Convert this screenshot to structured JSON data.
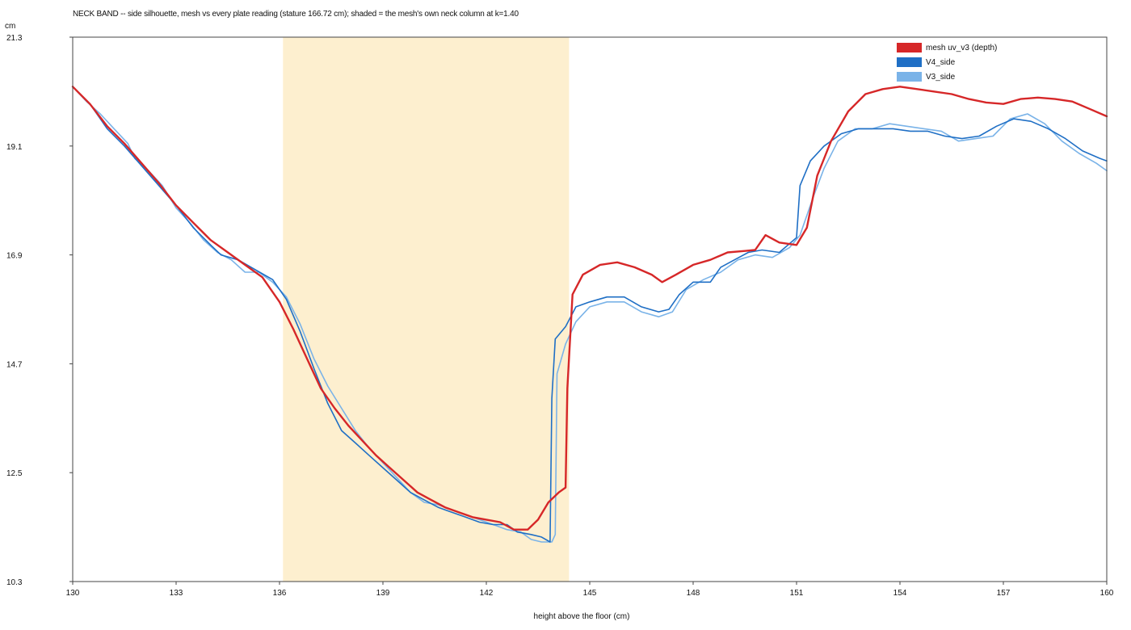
{
  "chart_data": {
    "type": "line",
    "title": "NECK BAND -- side silhouette, mesh vs every plate reading (stature 166.72 cm); shaded = the mesh's own neck column at k=1.40",
    "xlabel": "height above the floor (cm)",
    "ylabel": "cm",
    "xlim": [
      130,
      160
    ],
    "ylim": [
      10.3,
      21.3
    ],
    "x_ticks": [
      "130",
      "133",
      "136",
      "139",
      "142",
      "145",
      "148",
      "151",
      "154",
      "157",
      "160"
    ],
    "y_ticks": [
      "10.3",
      "12.5",
      "14.7",
      "16.9",
      "19.1",
      "21.3"
    ],
    "shaded_band": {
      "x_start": 136.1,
      "x_end": 144.4,
      "color": "#fdefcf"
    },
    "legend_position": "top-right",
    "grid": false,
    "series": [
      {
        "name": "mesh uv_v3 (depth)",
        "color": "#d62728",
        "points": [
          [
            130,
            20.3
          ],
          [
            130.5,
            19.95
          ],
          [
            131,
            19.5
          ],
          [
            131.5,
            19.15
          ],
          [
            132,
            18.75
          ],
          [
            132.5,
            18.35
          ],
          [
            133,
            17.9
          ],
          [
            133.5,
            17.55
          ],
          [
            134,
            17.2
          ],
          [
            134.5,
            16.95
          ],
          [
            135,
            16.7
          ],
          [
            135.5,
            16.45
          ],
          [
            136,
            15.95
          ],
          [
            136.4,
            15.4
          ],
          [
            136.8,
            14.8
          ],
          [
            137.2,
            14.2
          ],
          [
            137.6,
            13.8
          ],
          [
            138,
            13.45
          ],
          [
            138.4,
            13.15
          ],
          [
            138.8,
            12.85
          ],
          [
            139.2,
            12.6
          ],
          [
            139.6,
            12.35
          ],
          [
            140,
            12.1
          ],
          [
            140.4,
            11.95
          ],
          [
            140.8,
            11.8
          ],
          [
            141.2,
            11.7
          ],
          [
            141.6,
            11.6
          ],
          [
            142,
            11.55
          ],
          [
            142.4,
            11.5
          ],
          [
            142.8,
            11.35
          ],
          [
            143.2,
            11.35
          ],
          [
            143.5,
            11.55
          ],
          [
            143.8,
            11.9
          ],
          [
            144.1,
            12.1
          ],
          [
            144.3,
            12.2
          ],
          [
            144.35,
            14.2
          ],
          [
            144.5,
            16.1
          ],
          [
            144.8,
            16.5
          ],
          [
            145.3,
            16.7
          ],
          [
            145.8,
            16.75
          ],
          [
            146.3,
            16.65
          ],
          [
            146.8,
            16.5
          ],
          [
            147.1,
            16.35
          ],
          [
            147.5,
            16.5
          ],
          [
            148,
            16.7
          ],
          [
            148.5,
            16.8
          ],
          [
            149,
            16.95
          ],
          [
            149.5,
            16.98
          ],
          [
            149.8,
            17.0
          ],
          [
            150.1,
            17.3
          ],
          [
            150.5,
            17.15
          ],
          [
            151,
            17.1
          ],
          [
            151.3,
            17.45
          ],
          [
            151.6,
            18.5
          ],
          [
            152,
            19.2
          ],
          [
            152.5,
            19.8
          ],
          [
            153,
            20.15
          ],
          [
            153.5,
            20.25
          ],
          [
            154,
            20.3
          ],
          [
            154.5,
            20.25
          ],
          [
            155,
            20.2
          ],
          [
            155.5,
            20.15
          ],
          [
            156,
            20.05
          ],
          [
            156.5,
            19.98
          ],
          [
            157,
            19.95
          ],
          [
            157.5,
            20.05
          ],
          [
            158,
            20.08
          ],
          [
            158.5,
            20.05
          ],
          [
            159,
            20.0
          ],
          [
            159.5,
            19.85
          ],
          [
            160,
            19.7
          ]
        ]
      },
      {
        "name": "V4_side",
        "color": "#1f6fc5",
        "points": [
          [
            130,
            20.3
          ],
          [
            130.5,
            19.95
          ],
          [
            131,
            19.45
          ],
          [
            131.5,
            19.1
          ],
          [
            132,
            18.7
          ],
          [
            132.5,
            18.3
          ],
          [
            133,
            17.9
          ],
          [
            133.5,
            17.45
          ],
          [
            134,
            17.1
          ],
          [
            134.3,
            16.9
          ],
          [
            134.8,
            16.8
          ],
          [
            135.3,
            16.6
          ],
          [
            135.8,
            16.4
          ],
          [
            136.2,
            16.0
          ],
          [
            136.6,
            15.35
          ],
          [
            137,
            14.6
          ],
          [
            137.4,
            13.9
          ],
          [
            137.8,
            13.35
          ],
          [
            138.2,
            13.1
          ],
          [
            138.6,
            12.85
          ],
          [
            139,
            12.6
          ],
          [
            139.4,
            12.35
          ],
          [
            139.8,
            12.1
          ],
          [
            140.2,
            11.95
          ],
          [
            140.6,
            11.8
          ],
          [
            141,
            11.7
          ],
          [
            141.4,
            11.6
          ],
          [
            141.8,
            11.5
          ],
          [
            142.2,
            11.45
          ],
          [
            142.6,
            11.45
          ],
          [
            142.9,
            11.3
          ],
          [
            143.3,
            11.25
          ],
          [
            143.6,
            11.2
          ],
          [
            143.85,
            11.1
          ],
          [
            143.9,
            14.0
          ],
          [
            144.0,
            15.2
          ],
          [
            144.3,
            15.45
          ],
          [
            144.6,
            15.85
          ],
          [
            145,
            15.95
          ],
          [
            145.5,
            16.05
          ],
          [
            146,
            16.05
          ],
          [
            146.5,
            15.85
          ],
          [
            147,
            15.75
          ],
          [
            147.3,
            15.8
          ],
          [
            147.6,
            16.1
          ],
          [
            148,
            16.35
          ],
          [
            148.5,
            16.35
          ],
          [
            148.8,
            16.65
          ],
          [
            149.2,
            16.8
          ],
          [
            149.6,
            16.95
          ],
          [
            150,
            17.0
          ],
          [
            150.5,
            16.95
          ],
          [
            151,
            17.25
          ],
          [
            151.1,
            18.3
          ],
          [
            151.4,
            18.8
          ],
          [
            151.8,
            19.1
          ],
          [
            152.3,
            19.35
          ],
          [
            152.8,
            19.45
          ],
          [
            153.3,
            19.45
          ],
          [
            153.8,
            19.45
          ],
          [
            154.3,
            19.4
          ],
          [
            154.8,
            19.4
          ],
          [
            155.3,
            19.3
          ],
          [
            155.8,
            19.25
          ],
          [
            156.3,
            19.3
          ],
          [
            156.8,
            19.5
          ],
          [
            157.3,
            19.65
          ],
          [
            157.8,
            19.6
          ],
          [
            158.3,
            19.45
          ],
          [
            158.8,
            19.25
          ],
          [
            159.3,
            19.0
          ],
          [
            159.8,
            18.85
          ],
          [
            160,
            18.8
          ]
        ]
      },
      {
        "name": "V3_side",
        "color": "#7ab3e8",
        "points": [
          [
            130,
            20.3
          ],
          [
            130.4,
            20.0
          ],
          [
            130.8,
            19.75
          ],
          [
            131.2,
            19.45
          ],
          [
            131.6,
            19.15
          ],
          [
            131.8,
            18.85
          ],
          [
            132.2,
            18.6
          ],
          [
            132.6,
            18.3
          ],
          [
            133,
            17.85
          ],
          [
            133.4,
            17.55
          ],
          [
            133.8,
            17.2
          ],
          [
            134.2,
            16.95
          ],
          [
            134.6,
            16.8
          ],
          [
            135,
            16.55
          ],
          [
            135.4,
            16.55
          ],
          [
            135.8,
            16.35
          ],
          [
            136.2,
            16.05
          ],
          [
            136.6,
            15.5
          ],
          [
            137,
            14.8
          ],
          [
            137.4,
            14.25
          ],
          [
            137.8,
            13.8
          ],
          [
            138.2,
            13.35
          ],
          [
            138.6,
            13.0
          ],
          [
            139,
            12.7
          ],
          [
            139.4,
            12.4
          ],
          [
            139.8,
            12.1
          ],
          [
            140.2,
            11.9
          ],
          [
            140.6,
            11.85
          ],
          [
            141,
            11.75
          ],
          [
            141.4,
            11.65
          ],
          [
            141.8,
            11.55
          ],
          [
            142.2,
            11.45
          ],
          [
            142.6,
            11.35
          ],
          [
            143,
            11.3
          ],
          [
            143.3,
            11.15
          ],
          [
            143.6,
            11.1
          ],
          [
            143.9,
            11.1
          ],
          [
            144.0,
            11.25
          ],
          [
            144.05,
            14.5
          ],
          [
            144.3,
            15.1
          ],
          [
            144.6,
            15.55
          ],
          [
            145,
            15.85
          ],
          [
            145.5,
            15.95
          ],
          [
            146,
            15.95
          ],
          [
            146.5,
            15.75
          ],
          [
            147,
            15.65
          ],
          [
            147.4,
            15.75
          ],
          [
            147.8,
            16.2
          ],
          [
            148.3,
            16.4
          ],
          [
            148.8,
            16.55
          ],
          [
            149.3,
            16.8
          ],
          [
            149.8,
            16.9
          ],
          [
            150.3,
            16.85
          ],
          [
            150.8,
            17.05
          ],
          [
            151.1,
            17.3
          ],
          [
            151.5,
            18.1
          ],
          [
            151.8,
            18.65
          ],
          [
            152.2,
            19.2
          ],
          [
            152.7,
            19.45
          ],
          [
            153.2,
            19.45
          ],
          [
            153.7,
            19.55
          ],
          [
            154.2,
            19.5
          ],
          [
            154.7,
            19.45
          ],
          [
            155.2,
            19.4
          ],
          [
            155.7,
            19.2
          ],
          [
            156.2,
            19.25
          ],
          [
            156.7,
            19.3
          ],
          [
            157.2,
            19.65
          ],
          [
            157.7,
            19.75
          ],
          [
            158.2,
            19.55
          ],
          [
            158.7,
            19.2
          ],
          [
            159.2,
            18.95
          ],
          [
            159.7,
            18.75
          ],
          [
            160,
            18.6
          ]
        ]
      }
    ]
  }
}
